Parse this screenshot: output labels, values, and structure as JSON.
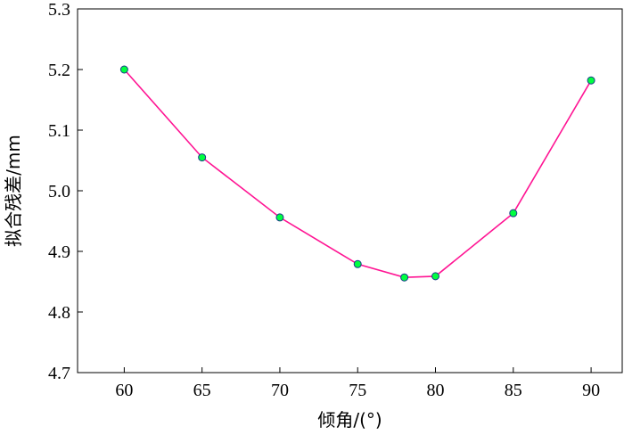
{
  "chart_data": {
    "type": "line",
    "xlabel": "倾角/(°)",
    "ylabel": "拟合残差/mm",
    "xlim": [
      57,
      92
    ],
    "ylim": [
      4.7,
      5.3
    ],
    "xticks": [
      60,
      65,
      70,
      75,
      80,
      85,
      90
    ],
    "yticks": [
      4.7,
      4.8,
      4.9,
      5.0,
      5.1,
      5.2,
      5.3
    ],
    "xtick_labels": [
      "60",
      "65",
      "70",
      "75",
      "80",
      "85",
      "90"
    ],
    "ytick_labels": [
      "4.7",
      "4.8",
      "4.9",
      "5.0",
      "5.1",
      "5.2",
      "5.3"
    ],
    "grid": false,
    "series": [
      {
        "x": [
          60,
          65,
          70,
          75,
          78,
          80,
          85,
          90
        ],
        "y": [
          5.2,
          5.055,
          4.956,
          4.879,
          4.857,
          4.859,
          4.963,
          5.182
        ],
        "line_color": "#ff1493",
        "marker_color": "#00ff40",
        "marker_edge": "#1a3a8a"
      }
    ]
  }
}
